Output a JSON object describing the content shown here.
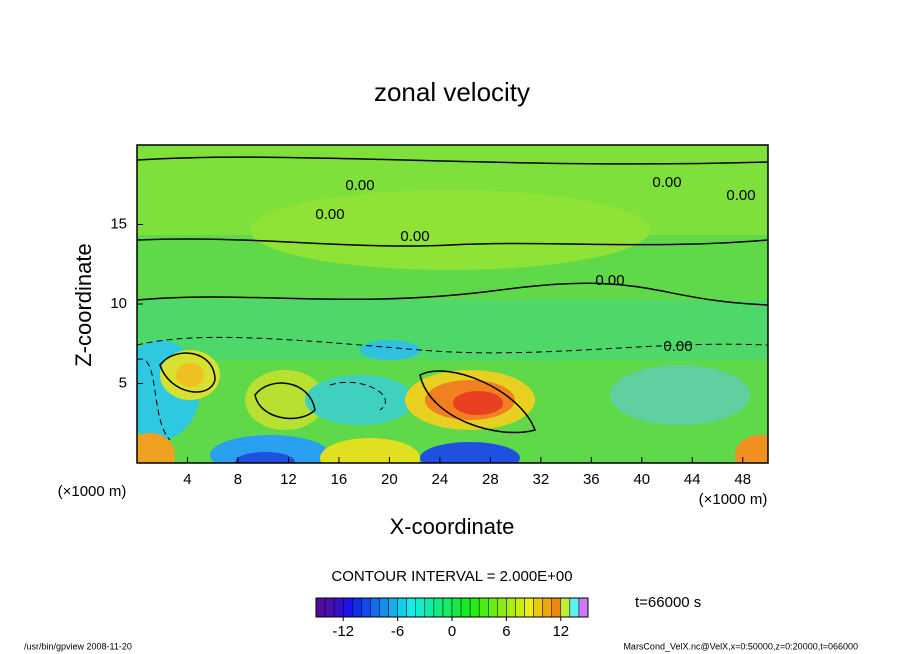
{
  "chart_data": {
    "type": "contour",
    "title": "zonal velocity",
    "x_label": "X-coordinate",
    "y_label": "Z-coordinate",
    "x_unit": "(×1000 m)",
    "y_unit": "(×1000 m)",
    "xlim": [
      0,
      50
    ],
    "xticks": [
      4,
      8,
      12,
      16,
      20,
      24,
      28,
      32,
      36,
      40,
      44,
      48
    ],
    "ylim": [
      0,
      20
    ],
    "yticks": [
      5,
      10,
      15
    ],
    "contour_labels": [
      "0.00",
      "0.00",
      "0.00",
      "0.00",
      "0.00",
      "0.00",
      "0.00"
    ],
    "contour_interval": "CONTOUR INTERVAL = 2.000E+00",
    "time_label": "t=66000 s",
    "colorbar_lim": [
      -15,
      15
    ],
    "colorbar_ticks": [
      -12,
      -6,
      0,
      6,
      12
    ],
    "footer_left": "/usr/bin/gpview  2008-11-20",
    "footer_right": "MarsCond_VelX.nc@VelX,x=0:50000,z=0:20000,t=066000"
  }
}
